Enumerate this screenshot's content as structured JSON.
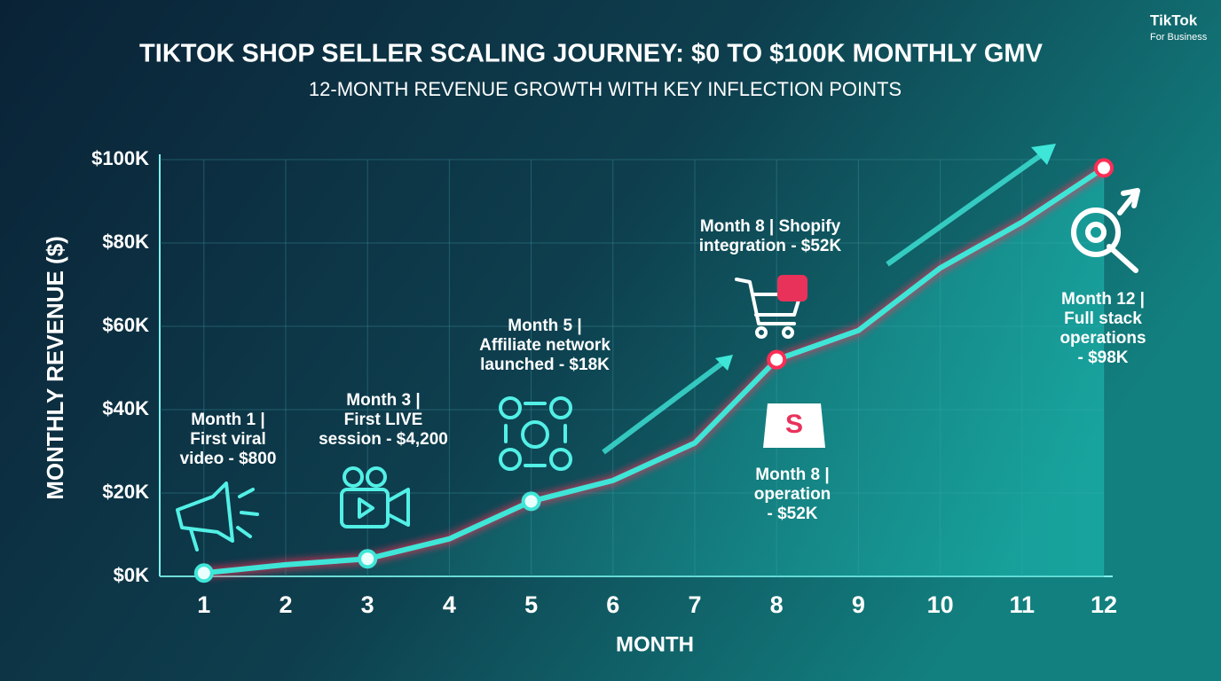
{
  "chart_data": {
    "type": "line",
    "title": "TIKTOK SHOP SELLER SCALING JOURNEY: $0 TO $100K MONTHLY GMV",
    "subtitle": "12-MONTH REVENUE GROWTH WITH KEY INFLECTION POINTS",
    "brand": [
      "TikTok",
      "For Business"
    ],
    "y_label": "MONTHLY REVENUE ($)",
    "x_label": "MONTH",
    "x": [
      1,
      2,
      3,
      4,
      5,
      6,
      7,
      8,
      9,
      10,
      11,
      12
    ],
    "values": [
      0.8,
      2.8,
      4.2,
      9,
      18,
      23,
      32,
      52,
      59,
      74,
      85,
      98
    ],
    "color": "#3ee6d8",
    "xlim": [
      0.46,
      12
    ],
    "xticks": [
      1,
      2,
      3,
      4,
      5,
      6,
      7,
      8,
      9,
      10,
      11,
      12
    ],
    "ylim": [
      0,
      100
    ],
    "yticks": [
      {
        "value": 0,
        "label": "$0K"
      },
      {
        "value": 20,
        "label": "$20K"
      },
      {
        "value": 40,
        "label": "$40K"
      },
      {
        "value": 60,
        "label": "$60K"
      },
      {
        "value": 80,
        "label": "$80K"
      },
      {
        "value": 100,
        "label": "$100K"
      }
    ],
    "grid": true,
    "annotations": [
      [
        "Month 1 |",
        "First viral",
        "video - $800"
      ],
      [
        "Month 3 |",
        "First LIVE",
        "session - $4,200"
      ],
      [
        "Month 5 |",
        "Affiliate network",
        "launched - $18K"
      ],
      [
        "Month 8 | Shopify",
        "integration - $52K"
      ],
      [
        "Month 8 |",
        "operation",
        "- $52K"
      ],
      [
        "Month 12 |",
        "Full stack",
        "operations",
        "- $98K"
      ]
    ]
  }
}
